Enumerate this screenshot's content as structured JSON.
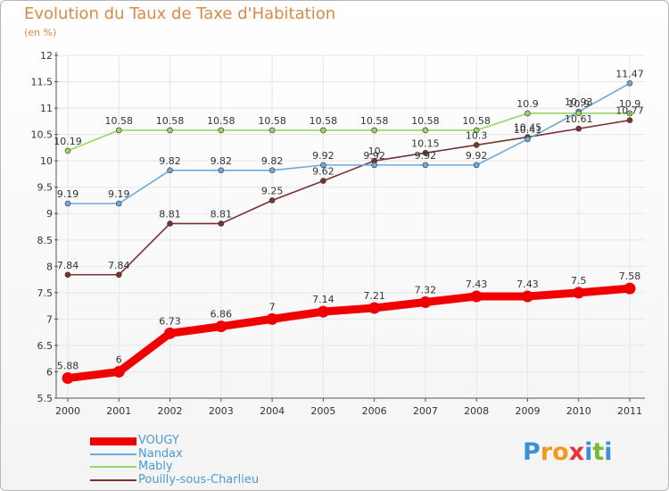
{
  "title": "Evolution du Taux de Taxe d'Habitation",
  "subtitle": "(en %)",
  "logo": {
    "letters": [
      "P",
      "r",
      "o",
      "x",
      "i",
      "t",
      "i"
    ],
    "colors": [
      "#3b8fd8",
      "#f39a1e",
      "#f39a1e",
      "#e8343a",
      "#3b8fd8",
      "#7cb82f",
      "#3b8fd8"
    ]
  },
  "chart_data": {
    "type": "line",
    "categories": [
      "2000",
      "2001",
      "2002",
      "2003",
      "2004",
      "2005",
      "2006",
      "2007",
      "2008",
      "2009",
      "2010",
      "2011"
    ],
    "ylim": [
      5.5,
      12
    ],
    "yticks": [
      "5.5",
      "6",
      "6.5",
      "7",
      "7.5",
      "8",
      "8.5",
      "9",
      "9.5",
      "10",
      "10.5",
      "11",
      "11.5",
      "12"
    ],
    "grid": true,
    "legend_position": "bottom-left",
    "series": [
      {
        "name": "VOUGY",
        "color": "#f00000",
        "values": [
          5.88,
          6,
          6.73,
          6.86,
          7,
          7.14,
          7.21,
          7.32,
          7.43,
          7.43,
          7.5,
          7.58
        ],
        "labels": [
          "5.88",
          "6",
          "6.73",
          "6.86",
          "7",
          "7.14",
          "7.21",
          "7.32",
          "7.43",
          "7.43",
          "7.5",
          "7.58"
        ]
      },
      {
        "name": "Nandax",
        "color": "#6fa8dc",
        "values": [
          9.19,
          9.19,
          9.82,
          9.82,
          9.82,
          9.92,
          9.92,
          9.92,
          9.92,
          10.41,
          10.93,
          11.47
        ],
        "labels": [
          "9.19",
          "9.19",
          "9.82",
          "9.82",
          "9.82",
          "9.92",
          "9.92",
          "9.92",
          "9.92",
          "10.41",
          "10.93",
          "11.47"
        ]
      },
      {
        "name": "Mably",
        "color": "#98d668",
        "values": [
          10.19,
          10.58,
          10.58,
          10.58,
          10.58,
          10.58,
          10.58,
          10.58,
          10.58,
          10.9,
          10.9,
          10.9
        ],
        "labels": [
          "10.19",
          "10.58",
          "10.58",
          "10.58",
          "10.58",
          "10.58",
          "10.58",
          "10.58",
          "10.58",
          "10.9",
          "10.9",
          "10.9"
        ]
      },
      {
        "name": "Pouilly-sous-Charlieu",
        "color": "#7a3232",
        "values": [
          7.84,
          7.84,
          8.81,
          8.81,
          9.25,
          9.62,
          10,
          10.15,
          10.3,
          10.45,
          10.61,
          10.77
        ],
        "labels": [
          "7.84",
          "7.84",
          "8.81",
          "8.81",
          "9.25",
          "9.62",
          "10",
          "10.15",
          "10.3",
          "10.45",
          "10.61",
          "10.77"
        ]
      }
    ]
  }
}
